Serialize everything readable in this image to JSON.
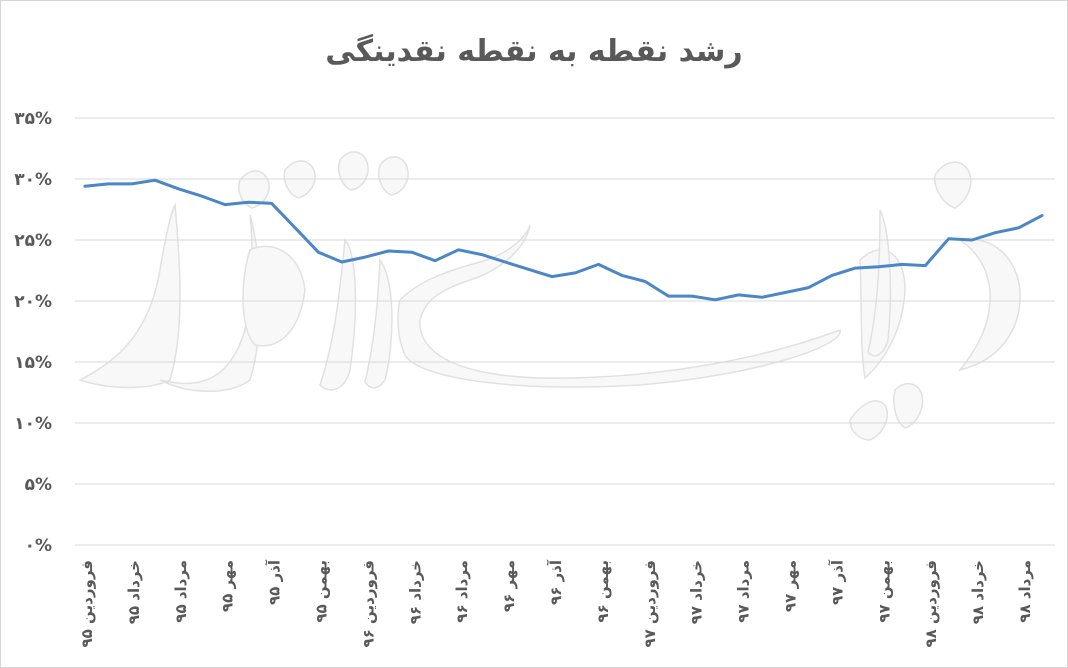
{
  "chart_data": {
    "type": "line",
    "title": "رشد نقطه به نقطه نقدینگی",
    "ylim": [
      0,
      35
    ],
    "y_ticks": [
      0,
      5,
      10,
      15,
      20,
      25,
      30,
      35
    ],
    "y_tick_labels": [
      "۰%",
      "۵%",
      "۱۰%",
      "۱۵%",
      "۲۰%",
      "۲۵%",
      "۳۰%",
      "۳۵%"
    ],
    "x_tick_labels": [
      "فروردین ۹۵",
      "خرداد ۹۵",
      "مرداد ۹۵",
      "مهر ۹۵",
      "آذر ۹۵",
      "بهمن ۹۵",
      "فروردین ۹۶",
      "خرداد ۹۶",
      "مرداد ۹۶",
      "مهر ۹۶",
      "آذر ۹۶",
      "بهمن ۹۶",
      "فروردین ۹۷",
      "خرداد ۹۷",
      "مرداد ۹۷",
      "مهر ۹۷",
      "آذر ۹۷",
      "بهمن ۹۷",
      "فروردین ۹۸",
      "خرداد ۹۸",
      "مرداد ۹۸"
    ],
    "grid": true,
    "line_color": "#4a86c8",
    "series": [
      {
        "values": [
          29.4,
          29.6,
          29.6,
          29.9,
          29.2,
          28.6,
          27.9,
          28.1,
          28.0,
          26.0,
          24.0,
          23.2,
          23.6,
          24.1,
          24.0,
          23.3,
          24.2,
          23.8,
          23.2,
          22.6,
          22.0,
          22.3,
          23.0,
          22.1,
          21.6,
          20.4,
          20.4,
          20.1,
          20.5,
          20.3,
          20.7,
          21.1,
          22.1,
          22.7,
          22.8,
          23.0,
          22.9,
          25.1,
          25.0,
          25.6,
          26.0,
          27.0
        ]
      }
    ]
  }
}
